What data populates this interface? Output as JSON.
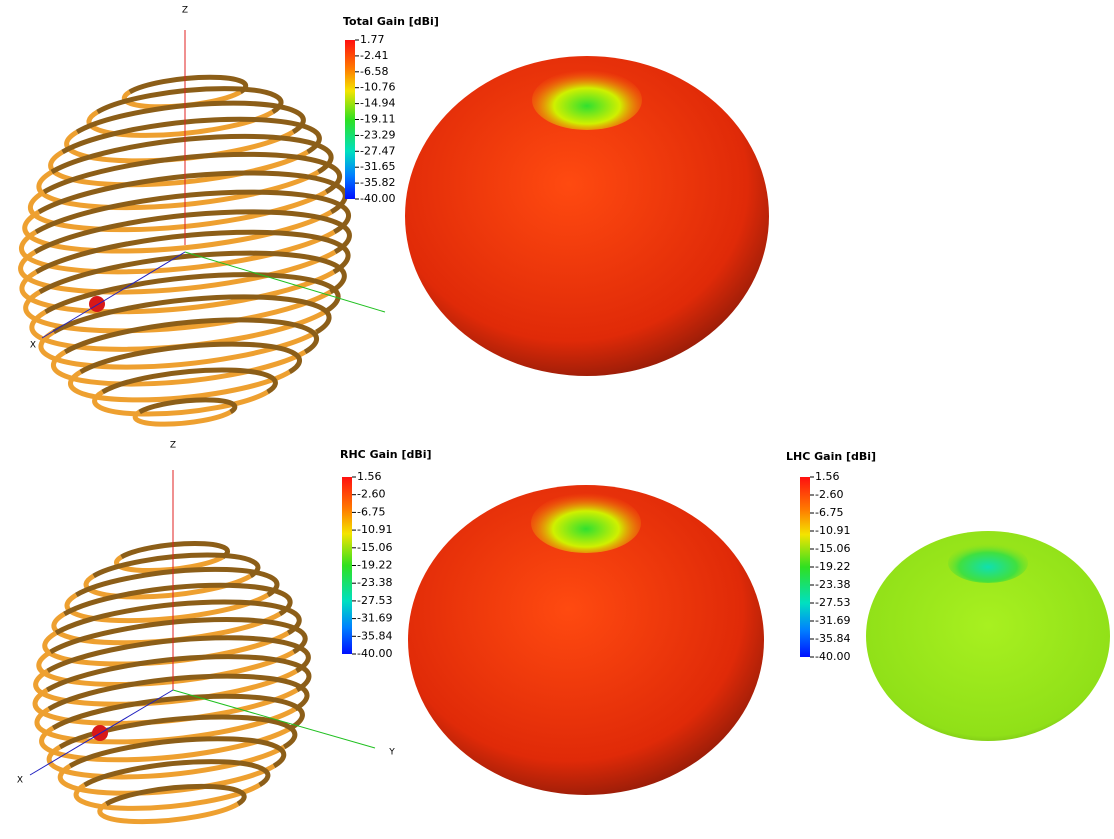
{
  "top": {
    "axis_z": "Z",
    "axis_x": "X",
    "colorbar": {
      "title": "Total Gain [dBi]",
      "labels": [
        "1.77",
        "-2.41",
        "-6.58",
        "-10.76",
        "-14.94",
        "-19.11",
        "-23.29",
        "-27.47",
        "-31.65",
        "-35.82",
        "-40.00"
      ]
    }
  },
  "bottom": {
    "axis_z": "Z",
    "axis_x": "X",
    "axis_y": "Y",
    "rhc": {
      "title": "RHC Gain [dBi]",
      "labels": [
        "1.56",
        "-2.60",
        "-6.75",
        "-10.91",
        "-15.06",
        "-19.22",
        "-23.38",
        "-27.53",
        "-31.69",
        "-35.84",
        "-40.00"
      ]
    },
    "lhc": {
      "title": "LHC Gain [dBi]",
      "labels": [
        "1.56",
        "-2.60",
        "-6.75",
        "-10.91",
        "-15.06",
        "-19.22",
        "-23.38",
        "-27.53",
        "-31.69",
        "-35.84",
        "-40.00"
      ]
    }
  }
}
